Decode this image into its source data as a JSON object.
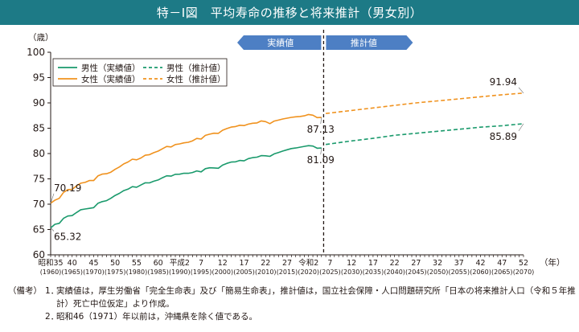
{
  "title": "特－Ⅰ図　平均寿命の推移と将来推計（男女別）",
  "notes": {
    "label": "（備考）",
    "items": [
      {
        "num": "1．",
        "text": "実績値は，厚生労働省「完全生命表」及び「簡易生命表」，推計値は，国立社会保障・人口問題研究所「日本の将来推計人口（令和５年推計）死亡中位仮定」より作成。"
      },
      {
        "num": "2．",
        "text": "昭和46（1971）年以前は，沖縄県を除く値である。"
      }
    ]
  },
  "chart_data": {
    "type": "line",
    "ylabel": "（歳）",
    "xlabel": "（年）",
    "ylim": [
      60,
      100
    ],
    "yticks": [
      60,
      65,
      70,
      75,
      80,
      85,
      90,
      95,
      100
    ],
    "xlim": [
      1960,
      2070
    ],
    "grid": false,
    "legend_position": "top-left",
    "divider_year": 2023.5,
    "period_labels": {
      "actual": "実績値",
      "projection": "推計値"
    },
    "xticks": [
      {
        "year": 1960,
        "era": "昭和35",
        "west": "(1960)"
      },
      {
        "year": 1965,
        "era": "40",
        "west": "(1965)"
      },
      {
        "year": 1970,
        "era": "45",
        "west": "(1970)"
      },
      {
        "year": 1975,
        "era": "50",
        "west": "(1975)"
      },
      {
        "year": 1980,
        "era": "55",
        "west": "(1980)"
      },
      {
        "year": 1985,
        "era": "60",
        "west": "(1985)"
      },
      {
        "year": 1990,
        "era": "平成2",
        "west": "(1990)"
      },
      {
        "year": 1995,
        "era": "7",
        "west": "(1995)"
      },
      {
        "year": 2000,
        "era": "12",
        "west": "(2000)"
      },
      {
        "year": 2005,
        "era": "17",
        "west": "(2005)"
      },
      {
        "year": 2010,
        "era": "22",
        "west": "(2010)"
      },
      {
        "year": 2015,
        "era": "27",
        "west": "(2015)"
      },
      {
        "year": 2020,
        "era": "令和2",
        "west": "(2020)"
      },
      {
        "year": 2025,
        "era": "7",
        "west": "(2025)"
      },
      {
        "year": 2030,
        "era": "12",
        "west": "(2030)"
      },
      {
        "year": 2035,
        "era": "17",
        "west": "(2035)"
      },
      {
        "year": 2040,
        "era": "22",
        "west": "(2040)"
      },
      {
        "year": 2045,
        "era": "27",
        "west": "(2045)"
      },
      {
        "year": 2050,
        "era": "32",
        "west": "(2050)"
      },
      {
        "year": 2055,
        "era": "37",
        "west": "(2055)"
      },
      {
        "year": 2060,
        "era": "42",
        "west": "(2060)"
      },
      {
        "year": 2065,
        "era": "47",
        "west": "(2065)"
      },
      {
        "year": 2070,
        "era": "52",
        "west": "(2070)"
      }
    ],
    "series": [
      {
        "name": "男性（実績値）",
        "color": "#1a9a6c",
        "dashed": false,
        "x": [
          1960,
          1961,
          1962,
          1963,
          1964,
          1965,
          1966,
          1967,
          1968,
          1969,
          1970,
          1971,
          1972,
          1973,
          1974,
          1975,
          1976,
          1977,
          1978,
          1979,
          1980,
          1981,
          1982,
          1983,
          1984,
          1985,
          1986,
          1987,
          1988,
          1989,
          1990,
          1991,
          1992,
          1993,
          1994,
          1995,
          1996,
          1997,
          1998,
          1999,
          2000,
          2001,
          2002,
          2003,
          2004,
          2005,
          2006,
          2007,
          2008,
          2009,
          2010,
          2011,
          2012,
          2013,
          2014,
          2015,
          2016,
          2017,
          2018,
          2019,
          2020,
          2021,
          2022,
          2023
        ],
        "y": [
          65.32,
          66.03,
          66.23,
          67.21,
          67.67,
          67.74,
          68.35,
          68.91,
          69.05,
          69.18,
          69.31,
          70.17,
          70.5,
          70.7,
          71.16,
          71.73,
          72.15,
          72.69,
          72.97,
          73.46,
          73.35,
          73.79,
          74.22,
          74.2,
          74.54,
          74.78,
          75.23,
          75.61,
          75.54,
          75.91,
          75.92,
          76.11,
          76.09,
          76.25,
          76.57,
          76.38,
          77.01,
          77.19,
          77.16,
          77.1,
          77.72,
          78.07,
          78.32,
          78.36,
          78.64,
          78.56,
          79.0,
          79.19,
          79.29,
          79.59,
          79.55,
          79.44,
          79.94,
          80.21,
          80.5,
          80.75,
          80.98,
          81.09,
          81.25,
          81.41,
          81.56,
          81.47,
          81.05,
          81.09
        ]
      },
      {
        "name": "女性（実績値）",
        "color": "#f0921e",
        "dashed": false,
        "x": [
          1960,
          1961,
          1962,
          1963,
          1964,
          1965,
          1966,
          1967,
          1968,
          1969,
          1970,
          1971,
          1972,
          1973,
          1974,
          1975,
          1976,
          1977,
          1978,
          1979,
          1980,
          1981,
          1982,
          1983,
          1984,
          1985,
          1986,
          1987,
          1988,
          1989,
          1990,
          1991,
          1992,
          1993,
          1994,
          1995,
          1996,
          1997,
          1998,
          1999,
          2000,
          2001,
          2002,
          2003,
          2004,
          2005,
          2006,
          2007,
          2008,
          2009,
          2010,
          2011,
          2012,
          2013,
          2014,
          2015,
          2016,
          2017,
          2018,
          2019,
          2020,
          2021,
          2022,
          2023
        ],
        "y": [
          70.19,
          70.79,
          71.16,
          72.34,
          72.87,
          72.92,
          73.61,
          74.15,
          74.3,
          74.67,
          74.66,
          75.58,
          75.94,
          76.02,
          76.31,
          76.89,
          77.35,
          77.95,
          78.33,
          78.89,
          78.76,
          79.13,
          79.66,
          79.78,
          80.18,
          80.48,
          80.93,
          81.39,
          81.3,
          81.77,
          81.9,
          82.11,
          82.22,
          82.51,
          82.98,
          82.85,
          83.59,
          83.82,
          84.01,
          83.99,
          84.6,
          84.93,
          85.23,
          85.33,
          85.59,
          85.52,
          85.81,
          85.99,
          86.05,
          86.44,
          86.3,
          85.9,
          86.41,
          86.61,
          86.83,
          86.99,
          87.14,
          87.26,
          87.32,
          87.45,
          87.71,
          87.57,
          87.09,
          87.13
        ]
      },
      {
        "name": "男性（推計値）",
        "color": "#1a9a6c",
        "dashed": true,
        "x": [
          2024,
          2030,
          2035,
          2040,
          2045,
          2050,
          2055,
          2060,
          2065,
          2070
        ],
        "y": [
          81.8,
          82.5,
          83.0,
          83.6,
          84.0,
          84.4,
          84.8,
          85.2,
          85.5,
          85.89
        ]
      },
      {
        "name": "女性（推計値）",
        "color": "#f0921e",
        "dashed": true,
        "x": [
          2024,
          2030,
          2035,
          2040,
          2045,
          2050,
          2055,
          2060,
          2065,
          2070
        ],
        "y": [
          87.9,
          88.5,
          89.0,
          89.5,
          90.0,
          90.4,
          90.8,
          91.2,
          91.6,
          91.94
        ]
      }
    ],
    "annotations": [
      {
        "text": "70.19",
        "series": 1,
        "x": 1960,
        "y": 70.19
      },
      {
        "text": "65.32",
        "series": 0,
        "x": 1960,
        "y": 65.32
      },
      {
        "text": "87.13",
        "series": 1,
        "x": 2023,
        "y": 87.13
      },
      {
        "text": "81.09",
        "series": 0,
        "x": 2023,
        "y": 81.09
      },
      {
        "text": "91.94",
        "series": 3,
        "x": 2070,
        "y": 91.94
      },
      {
        "text": "85.89",
        "series": 2,
        "x": 2070,
        "y": 85.89
      }
    ]
  }
}
